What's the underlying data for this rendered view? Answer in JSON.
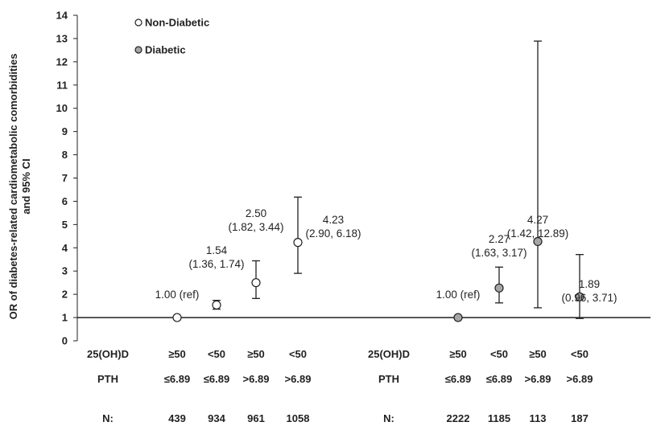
{
  "chart_data": {
    "type": "scatter",
    "ylabel_lines": [
      "OR of diabetes-related cardiometabolic comorbidities",
      "and 95% CI"
    ],
    "ylim": [
      0,
      14
    ],
    "yticks": [
      "0",
      "1",
      "2",
      "3",
      "4",
      "5",
      "6",
      "7",
      "8",
      "9",
      "10",
      "11",
      "12",
      "13",
      "14"
    ],
    "reference_line": 1,
    "legend": [
      {
        "label": "Non-Diabetic",
        "color": "#ffffff"
      },
      {
        "label": "Diabetic",
        "color": "#a6a6a6"
      }
    ],
    "groups": [
      {
        "name": "Non-Diabetic",
        "row_labels": {
          "vitd": "25(OH)D",
          "pth": "PTH",
          "n": "N:"
        },
        "points": [
          {
            "vitd": "≥50",
            "pth": "≤6.89",
            "n": "439",
            "or": 1.0,
            "ci": null,
            "label1": "1.00 (ref)",
            "label2": ""
          },
          {
            "vitd": "<50",
            "pth": "≤6.89",
            "n": "934",
            "or": 1.54,
            "ci": [
              1.36,
              1.74
            ],
            "label1": "1.54",
            "label2": "(1.36, 1.74)"
          },
          {
            "vitd": "≥50",
            "pth": ">6.89",
            "n": "961",
            "or": 2.5,
            "ci": [
              1.82,
              3.44
            ],
            "label1": "2.50",
            "label2": "(1.82, 3.44)"
          },
          {
            "vitd": "<50",
            "pth": ">6.89",
            "n": "1058",
            "or": 4.23,
            "ci": [
              2.9,
              6.18
            ],
            "label1": "4.23",
            "label2": "(2.90, 6.18)"
          }
        ]
      },
      {
        "name": "Diabetic",
        "row_labels": {
          "vitd": "25(OH)D",
          "pth": "PTH",
          "n": "N:"
        },
        "points": [
          {
            "vitd": "≥50",
            "pth": "≤6.89",
            "n": "2222",
            "or": 1.0,
            "ci": null,
            "label1": "1.00 (ref)",
            "label2": ""
          },
          {
            "vitd": "<50",
            "pth": "≤6.89",
            "n": "1185",
            "or": 2.27,
            "ci": [
              1.63,
              3.17
            ],
            "label1": "2.27",
            "label2": "(1.63, 3.17)"
          },
          {
            "vitd": "≥50",
            "pth": ">6.89",
            "n": "113",
            "or": 4.27,
            "ci": [
              1.42,
              12.89
            ],
            "label1": "4.27",
            "label2": "(1.42, 12.89)"
          },
          {
            "vitd": "<50",
            "pth": ">6.89",
            "n": "187",
            "or": 1.89,
            "ci": [
              0.96,
              3.71
            ],
            "label1": "1.89",
            "label2": "(0.96, 3.71)"
          }
        ]
      }
    ]
  }
}
